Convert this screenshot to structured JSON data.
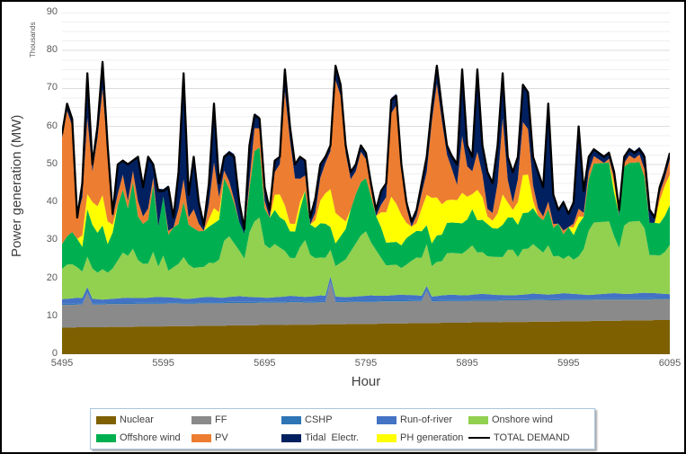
{
  "figure": {
    "y_axis_title": "Power generation (MW)",
    "y_axis_unit_label": "Thousands",
    "x_axis_title": "Hour"
  },
  "chart_data": {
    "type": "area",
    "stacked": true,
    "title": "",
    "xlabel": "Hour",
    "ylabel": "Power generation (MW)",
    "y_unit_label": "Thousands",
    "xlim": [
      5495,
      6095
    ],
    "ylim": [
      0,
      90
    ],
    "x_ticks": [
      5495,
      5595,
      5695,
      5795,
      5895,
      5995,
      6095
    ],
    "y_ticks": [
      0,
      10,
      20,
      30,
      40,
      50,
      60,
      70,
      80,
      90
    ],
    "grid": "horizontal minor every 2.5, major every 10",
    "grid_minor_color": "#efefef",
    "grid_major_color": "#dddddd",
    "legend_position": "bottom",
    "x_start": 5495,
    "x_step": 5,
    "series": [
      {
        "name": "Nuclear",
        "color": "#7F6000",
        "values": [
          7.0,
          7.0,
          7.0,
          7.1,
          7.1,
          7.1,
          7.1,
          7.1,
          7.1,
          7.2,
          7.2,
          7.2,
          7.2,
          7.2,
          7.2,
          7.3,
          7.3,
          7.3,
          7.3,
          7.3,
          7.3,
          7.4,
          7.4,
          7.4,
          7.4,
          7.4,
          7.4,
          7.5,
          7.5,
          7.5,
          7.5,
          7.5,
          7.5,
          7.6,
          7.6,
          7.6,
          7.6,
          7.6,
          7.6,
          7.7,
          7.7,
          7.7,
          7.7,
          7.7,
          7.7,
          7.8,
          7.8,
          7.8,
          7.8,
          7.8,
          7.8,
          7.9,
          7.9,
          7.9,
          7.9,
          7.9,
          7.9,
          8.0,
          8.0,
          8.0,
          8.0,
          8.0,
          8.0,
          8.1,
          8.1,
          8.1,
          8.1,
          8.1,
          8.1,
          8.2,
          8.2,
          8.2,
          8.2,
          8.2,
          8.2,
          8.3,
          8.3,
          8.3,
          8.3,
          8.3,
          8.3,
          8.4,
          8.4,
          8.4,
          8.4,
          8.4,
          8.4,
          8.5,
          8.5,
          8.5,
          8.5,
          8.5,
          8.5,
          8.6,
          8.6,
          8.6,
          8.6,
          8.6,
          8.6,
          8.7,
          8.7,
          8.7,
          8.7,
          8.7,
          8.7,
          8.8,
          8.8,
          8.8,
          8.8,
          8.8,
          8.8,
          8.9,
          8.9,
          8.9,
          8.9,
          8.9,
          8.9,
          9.0,
          9.0,
          9.0,
          9.0
        ]
      },
      {
        "name": "FF",
        "color": "#8A8A8A",
        "values": [
          6.0,
          6.0,
          6.0,
          6.0,
          6.0,
          9.0,
          6.0,
          6.0,
          6.0,
          6.0,
          6.0,
          6.0,
          6.0,
          6.0,
          6.0,
          6.0,
          6.0,
          6.0,
          6.0,
          6.0,
          6.0,
          6.0,
          6.0,
          6.0,
          5.9,
          5.9,
          5.9,
          5.9,
          5.9,
          5.9,
          5.9,
          5.9,
          5.9,
          5.9,
          5.9,
          5.9,
          5.9,
          5.9,
          5.9,
          5.9,
          5.9,
          5.9,
          5.9,
          5.9,
          5.9,
          5.9,
          5.9,
          5.9,
          5.8,
          5.8,
          5.8,
          5.8,
          5.8,
          11.0,
          5.8,
          5.8,
          5.8,
          5.8,
          5.8,
          5.8,
          5.8,
          5.8,
          5.8,
          5.8,
          5.8,
          5.8,
          5.8,
          5.8,
          5.8,
          5.8,
          5.8,
          5.8,
          8.5,
          5.7,
          5.7,
          5.7,
          5.7,
          5.7,
          5.7,
          5.7,
          5.7,
          5.7,
          5.7,
          5.7,
          5.7,
          5.7,
          5.7,
          5.7,
          5.7,
          5.7,
          5.7,
          5.7,
          5.7,
          5.7,
          5.7,
          5.7,
          5.6,
          5.6,
          5.6,
          5.6,
          5.6,
          5.6,
          5.6,
          5.6,
          5.6,
          5.6,
          5.6,
          5.6,
          5.6,
          5.6,
          5.6,
          5.5,
          5.5,
          5.5,
          5.5,
          5.5,
          5.5,
          5.5,
          5.5,
          5.5,
          5.5
        ]
      },
      {
        "name": "CSHP",
        "color": "#2E75B6",
        "values": [
          0.3,
          0.3,
          0.3,
          0.3,
          0.3,
          0.3,
          0.3,
          0.3,
          0.3,
          0.3,
          0.3,
          0.3,
          0.3,
          0.3,
          0.3,
          0.3,
          0.3,
          0.3,
          0.3,
          0.3,
          0.3,
          0.3,
          0.3,
          0.3,
          0.3,
          0.3,
          0.3,
          0.3,
          0.3,
          0.3,
          0.3,
          0.3,
          0.3,
          0.3,
          0.3,
          0.3,
          0.3,
          0.3,
          0.3,
          0.3,
          0.3,
          0.3,
          0.3,
          0.3,
          0.3,
          0.3,
          0.3,
          0.3,
          0.3,
          0.3,
          0.3,
          0.3,
          0.3,
          0.3,
          0.3,
          0.3,
          0.3,
          0.3,
          0.3,
          0.3,
          0.3,
          0.3,
          0.3,
          0.3,
          0.3,
          0.3,
          0.3,
          0.3,
          0.3,
          0.3,
          0.3,
          0.3,
          0.3,
          0.3,
          0.3,
          0.3,
          0.3,
          0.3,
          0.3,
          0.3,
          0.3,
          0.3,
          0.3,
          0.3,
          0.3,
          0.3,
          0.3,
          0.3,
          0.3,
          0.3,
          0.3,
          0.3,
          0.3,
          0.3,
          0.3,
          0.3,
          0.3,
          0.3,
          0.3,
          0.3,
          0.3,
          0.3,
          0.3,
          0.3,
          0.3,
          0.3,
          0.3,
          0.3,
          0.3,
          0.3,
          0.3,
          0.3,
          0.3,
          0.3,
          0.3,
          0.3,
          0.3,
          0.3,
          0.3,
          0.3,
          0.3
        ]
      },
      {
        "name": "Run-of-river",
        "color": "#4472C4",
        "values": [
          1.2,
          1.3,
          1.4,
          1.5,
          1.4,
          1.3,
          1.2,
          1.1,
          1.0,
          1.0,
          1.1,
          1.2,
          1.3,
          1.4,
          1.3,
          1.2,
          1.2,
          1.3,
          1.4,
          1.5,
          1.4,
          1.3,
          1.2,
          1.1,
          1.0,
          1.0,
          1.1,
          1.2,
          1.3,
          1.4,
          1.3,
          1.2,
          1.2,
          1.3,
          1.4,
          1.5,
          1.4,
          1.3,
          1.2,
          1.1,
          1.0,
          1.0,
          1.1,
          1.2,
          1.3,
          1.4,
          1.3,
          1.2,
          1.2,
          1.3,
          1.4,
          1.5,
          1.4,
          1.3,
          1.2,
          1.1,
          1.0,
          1.0,
          1.1,
          1.2,
          1.3,
          1.4,
          1.3,
          1.2,
          1.2,
          1.3,
          1.4,
          1.5,
          1.4,
          1.3,
          1.2,
          1.1,
          1.0,
          1.0,
          1.1,
          1.2,
          1.3,
          1.4,
          1.3,
          1.2,
          1.2,
          1.3,
          1.4,
          1.5,
          1.4,
          1.3,
          1.2,
          1.1,
          1.0,
          1.0,
          1.1,
          1.2,
          1.3,
          1.4,
          1.3,
          1.2,
          1.2,
          1.3,
          1.4,
          1.5,
          1.4,
          1.3,
          1.2,
          1.1,
          1.0,
          1.0,
          1.1,
          1.2,
          1.3,
          1.4,
          1.3,
          1.2,
          1.2,
          1.3,
          1.4,
          1.5,
          1.4,
          1.3,
          1.2,
          1.1,
          1.0
        ]
      },
      {
        "name": "Onshore wind",
        "color": "#92D050",
        "values": [
          8,
          9,
          9,
          8,
          7,
          8,
          8,
          7,
          8,
          7,
          8,
          10,
          12,
          11,
          13,
          10,
          9,
          9,
          12,
          8,
          11,
          7,
          8,
          9,
          11,
          9,
          8,
          8,
          8,
          9,
          9,
          10,
          15,
          16,
          14,
          12,
          10,
          17,
          20,
          21,
          14,
          13,
          14,
          13,
          12,
          10,
          10,
          13,
          15,
          11,
          10,
          10,
          10,
          7,
          8,
          9,
          10,
          12,
          14,
          16,
          17,
          14,
          12,
          10,
          8,
          8,
          8,
          7,
          8,
          9,
          10,
          10,
          11,
          8,
          9,
          9,
          11,
          11,
          11,
          11,
          12,
          13,
          11,
          11,
          10,
          10,
          10,
          10,
          12,
          12,
          10,
          12,
          12,
          13,
          12,
          11,
          13,
          10,
          10,
          9,
          10,
          9,
          10,
          12,
          17,
          19,
          19,
          19,
          19,
          15,
          12,
          18,
          19,
          19,
          19,
          17,
          10,
          10,
          10,
          11,
          13
        ]
      },
      {
        "name": "Offshore wind",
        "color": "#00B050",
        "values": [
          6.5,
          7.5,
          8.5,
          7.5,
          6.5,
          12.5,
          11.5,
          10.5,
          11.5,
          7.5,
          9.5,
          14.5,
          16.5,
          12.5,
          17.5,
          11.5,
          10.5,
          11.5,
          17.5,
          10.5,
          15.5,
          9.5,
          10.5,
          10.5,
          14.5,
          10.5,
          10.5,
          9.5,
          9.5,
          9.5,
          10.5,
          10.5,
          16.5,
          12.5,
          10.5,
          7.5,
          6.5,
          11.5,
          18.5,
          18.5,
          9.5,
          8,
          9,
          8,
          8,
          7,
          7,
          10,
          13,
          8,
          8,
          9,
          9,
          6,
          6,
          7,
          8,
          11,
          13,
          14,
          14,
          12,
          9,
          8,
          6,
          6,
          6,
          6,
          7,
          7,
          7,
          7,
          5,
          6,
          7,
          7,
          8,
          8,
          8,
          8,
          8,
          9.5,
          8.5,
          8.5,
          8.5,
          7.5,
          7.5,
          8.5,
          8.5,
          8.5,
          8.5,
          9.5,
          9.5,
          9.5,
          8.5,
          8.5,
          9.5,
          7.5,
          8.5,
          6.5,
          7.5,
          6.5,
          8.5,
          8.5,
          13.5,
          15.5,
          15.5,
          15.5,
          15.5,
          11.5,
          8.5,
          15.5,
          15.5,
          15.5,
          15.5,
          13.5,
          8.5,
          8.5,
          8.5,
          9.5,
          10.5
        ]
      },
      {
        "name": "PH generation",
        "color": "#FFFF00",
        "values": [
          0,
          0,
          0,
          0,
          3,
          4,
          6,
          7,
          8,
          6,
          2,
          0,
          0,
          0,
          0,
          0,
          0,
          0,
          0,
          0,
          0,
          0,
          0,
          0,
          0,
          0,
          0,
          0,
          0,
          2,
          4,
          2,
          0,
          0,
          0,
          0,
          0,
          0,
          0,
          0,
          0,
          0,
          4,
          6,
          4,
          2,
          2,
          2,
          0,
          0,
          2,
          6,
          8,
          10,
          8,
          5,
          2,
          0,
          0,
          0,
          0,
          0,
          0,
          4,
          8,
          12,
          10,
          8,
          4,
          2,
          2,
          6,
          8,
          12,
          10,
          8,
          6,
          6,
          6,
          8,
          6,
          4,
          8,
          6,
          2,
          2,
          4,
          8,
          4,
          2,
          6,
          10,
          10,
          2,
          0,
          0,
          0,
          0,
          0,
          0,
          0,
          2,
          2,
          0,
          0,
          0,
          0,
          0,
          0,
          2,
          0,
          0,
          0,
          0,
          0,
          0,
          0,
          0,
          6,
          8,
          8
        ]
      },
      {
        "name": "PV",
        "color": "#ED7D31",
        "values": [
          28,
          33,
          28,
          6,
          10,
          20,
          8,
          18,
          28,
          18,
          2,
          3,
          4,
          2,
          3,
          4,
          2,
          3,
          2,
          0,
          0,
          1,
          0,
          4,
          6,
          2,
          5,
          2,
          0,
          4,
          12,
          4,
          2,
          2,
          1,
          0,
          0,
          2,
          6,
          5,
          2,
          0,
          6,
          8,
          30,
          22,
          12,
          6,
          4,
          0,
          2,
          6,
          8,
          10,
          35,
          32,
          18,
          8,
          6,
          8,
          5,
          2,
          0,
          2,
          4,
          22,
          26,
          12,
          4,
          0,
          2,
          4,
          6,
          20,
          30,
          22,
          12,
          8,
          4,
          15,
          8,
          6,
          10,
          6,
          2,
          2,
          8,
          20,
          6,
          2,
          6,
          14,
          12,
          4,
          2,
          1,
          2,
          1,
          0,
          1,
          0,
          1,
          2,
          1,
          2,
          2,
          1,
          0,
          1,
          2,
          0,
          1,
          2,
          1,
          2,
          2,
          0,
          0,
          2,
          2,
          4
        ]
      },
      {
        "name": "Tidal  Electr.",
        "color": "#002060",
        "values": [
          1,
          2,
          2,
          0,
          4,
          12,
          2,
          3,
          7,
          2,
          1,
          8,
          4,
          10,
          3,
          12,
          8,
          14,
          4,
          10,
          2,
          12,
          3,
          10,
          28,
          6,
          14,
          6,
          2,
          6,
          16,
          4,
          4,
          8,
          12,
          6,
          2,
          10,
          4,
          3,
          4,
          2,
          3,
          2,
          6,
          4,
          4,
          6,
          4,
          2,
          4,
          4,
          2,
          2,
          4,
          3,
          2,
          2,
          2,
          2,
          2,
          2,
          2,
          4,
          4,
          4,
          3,
          2,
          2,
          2,
          2,
          3,
          4,
          4,
          5,
          4,
          3,
          4,
          6,
          18,
          6,
          4,
          22,
          8,
          10,
          8,
          10,
          12,
          6,
          8,
          6,
          10,
          10,
          8,
          10,
          8,
          26,
          8,
          4,
          8,
          4,
          6,
          22,
          6,
          4,
          2,
          2,
          2,
          2,
          2,
          2,
          2,
          2,
          2,
          2,
          4,
          4,
          2,
          2,
          2,
          2
        ]
      }
    ],
    "total_line": {
      "name": "TOTAL DEMAND",
      "color": "#000000",
      "values": [
        58,
        66,
        62,
        36,
        45,
        74,
        50,
        60,
        77,
        55,
        37,
        50,
        51,
        50,
        51,
        52,
        44,
        52,
        50,
        43,
        43,
        44,
        36,
        48,
        74,
        42,
        52,
        40,
        34,
        45,
        66,
        45,
        52,
        53,
        52,
        40,
        33,
        55,
        63,
        62,
        44,
        38,
        51,
        52,
        75,
        60,
        50,
        52,
        51,
        36,
        41,
        50,
        52,
        55,
        76,
        71,
        55,
        48,
        50,
        55,
        53,
        45,
        38,
        43,
        45,
        67,
        68,
        50,
        40,
        35,
        38,
        45,
        52,
        65,
        76,
        65,
        55,
        52,
        50,
        75,
        55,
        52,
        75,
        55,
        48,
        45,
        55,
        74,
        52,
        48,
        52,
        71,
        69,
        52,
        48,
        44,
        66,
        42,
        38,
        40,
        37,
        40,
        60,
        43,
        52,
        54,
        53,
        52,
        53,
        48,
        38,
        52,
        54,
        53,
        54,
        52,
        38,
        36,
        44,
        48,
        53
      ]
    },
    "legend": [
      {
        "label": "Nuclear",
        "color": "#7F6000",
        "swatch": "box"
      },
      {
        "label": "FF",
        "color": "#8A8A8A",
        "swatch": "box"
      },
      {
        "label": "CSHP",
        "color": "#2E75B6",
        "swatch": "box"
      },
      {
        "label": "Run-of-river",
        "color": "#4472C4",
        "swatch": "box"
      },
      {
        "label": "Onshore wind",
        "color": "#92D050",
        "swatch": "box"
      },
      {
        "label": "Offshore wind",
        "color": "#00B050",
        "swatch": "box"
      },
      {
        "label": "PV",
        "color": "#ED7D31",
        "swatch": "box"
      },
      {
        "label": "Tidal  Electr.",
        "color": "#002060",
        "swatch": "box"
      },
      {
        "label": "PH generation",
        "color": "#FFFF00",
        "swatch": "box"
      },
      {
        "label": "TOTAL DEMAND",
        "color": "#000000",
        "swatch": "line"
      }
    ]
  }
}
